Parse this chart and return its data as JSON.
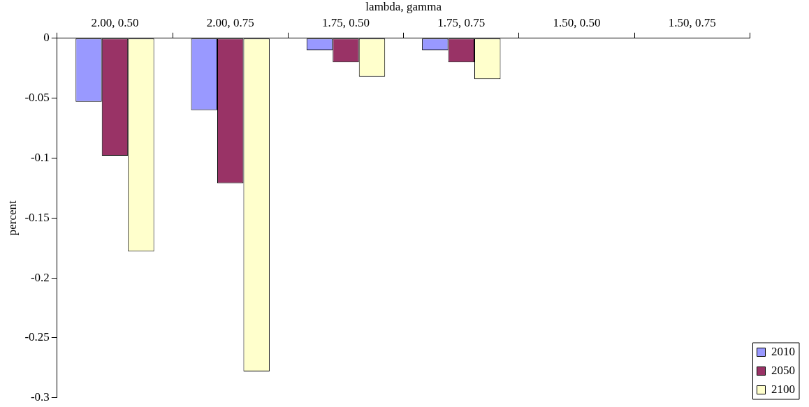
{
  "chart_data": {
    "type": "bar",
    "xlabel": "lambda, gamma",
    "ylabel": "percent",
    "categories": [
      "2.00, 0.50",
      "2.00, 0.75",
      "1.75, 0.50",
      "1.75, 0.75",
      "1.50, 0.50",
      "1.50, 0.75"
    ],
    "series": [
      {
        "name": "2010",
        "color": "#9999ff",
        "values": [
          -0.053,
          -0.06,
          -0.01,
          -0.01,
          0,
          0
        ]
      },
      {
        "name": "2050",
        "color": "#993366",
        "values": [
          -0.098,
          -0.121,
          -0.02,
          -0.02,
          0,
          0
        ]
      },
      {
        "name": "2100",
        "color": "#ffffcc",
        "values": [
          -0.178,
          -0.278,
          -0.032,
          -0.034,
          0,
          0
        ]
      }
    ],
    "ylim": [
      -0.3,
      0
    ],
    "yticks": [
      -0.3,
      -0.25,
      -0.2,
      -0.15,
      -0.1,
      -0.05,
      0
    ],
    "grid": false,
    "legend": "bottom right"
  }
}
